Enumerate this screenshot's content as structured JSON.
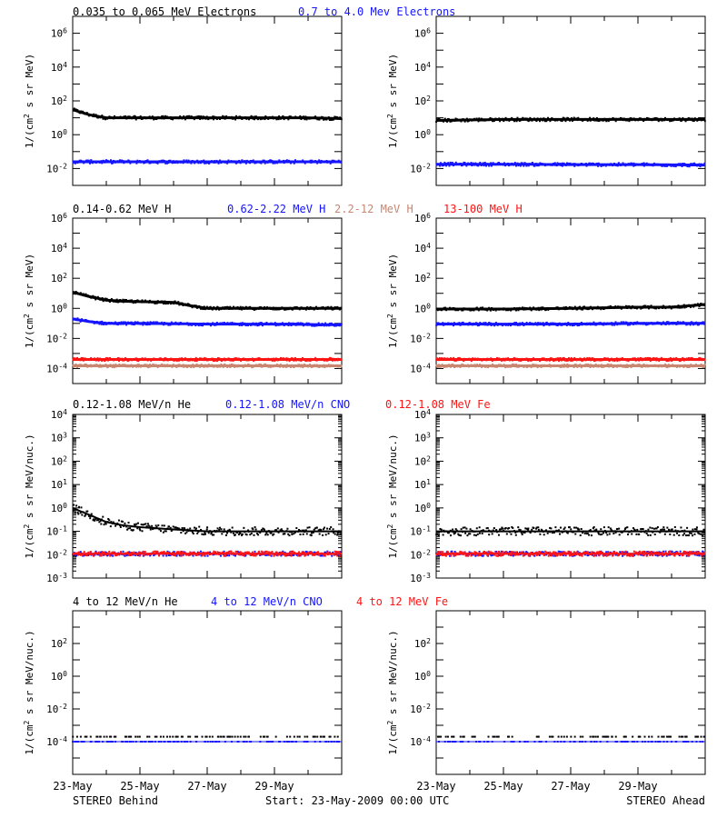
{
  "colors": {
    "black": "#000000",
    "blue": "#1414ff",
    "red": "#ff1414",
    "brown": "#c98670"
  },
  "panel_titles": [
    [
      {
        "text": "0.035 to 0.065 MeV Electrons",
        "color": "black"
      },
      {
        "text": "0.7 to 4.0 Mev Electrons",
        "color": "blue"
      }
    ],
    [
      {
        "text": "0.14-0.62 MeV H",
        "color": "black"
      },
      {
        "text": "0.62-2.22 MeV H",
        "color": "blue"
      },
      {
        "text": "2.2-12 MeV H",
        "color": "brown"
      },
      {
        "text": "13-100 MeV H",
        "color": "red"
      }
    ],
    [
      {
        "text": "0.12-1.08 MeV/n He",
        "color": "black"
      },
      {
        "text": "0.12-1.08 MeV/n CNO",
        "color": "blue"
      },
      {
        "text": "0.12-1.08 MeV Fe",
        "color": "red"
      }
    ],
    [
      {
        "text": "4 to 12 MeV/n He",
        "color": "black"
      },
      {
        "text": "4 to 12 MeV/n CNO",
        "color": "blue"
      },
      {
        "text": "4 to 12 MeV Fe",
        "color": "red"
      }
    ]
  ],
  "ylabels": [
    {
      "base": "1/(cm",
      "sup": "2",
      "rest": " s sr MeV)"
    },
    {
      "base": "1/(cm",
      "sup": "2",
      "rest": " s sr MeV)"
    },
    {
      "base": "1/(cm",
      "sup": "2",
      "rest": " s sr MeV/nuc.)"
    },
    {
      "base": "1/(cm",
      "sup": "2",
      "rest": " s sr MeV/nuc.)"
    }
  ],
  "footer": {
    "left": "STEREO Behind",
    "center": "Start: 23-May-2009 00:00 UTC",
    "right": "STEREO Ahead"
  },
  "chart_data": {
    "type": "scatter",
    "x_ticks": [
      "23-May",
      "25-May",
      "27-May",
      "29-May"
    ],
    "x_range_days": [
      0,
      8
    ],
    "rows": [
      {
        "scale": "log",
        "ylim_exp": [
          -3,
          7
        ],
        "ytick_exps": [
          -2,
          0,
          2,
          4,
          6
        ],
        "panels": [
          {
            "name": "STEREO Behind",
            "series": [
              {
                "name": "0.035 to 0.065 MeV Electrons",
                "color": "black",
                "x": [
                  0,
                  0.5,
                  1,
                  1.5,
                  2,
                  3,
                  4,
                  5,
                  6,
                  7,
                  8
                ],
                "y": [
                  30,
                  15,
                  10,
                  10,
                  10,
                  10,
                  10,
                  10,
                  10,
                  10,
                  9
                ]
              },
              {
                "name": "0.7 to 4.0 Mev Electrons",
                "color": "blue",
                "x": [
                  0,
                  2,
                  4,
                  6,
                  8
                ],
                "y": [
                  0.025,
                  0.025,
                  0.025,
                  0.025,
                  0.025
                ]
              }
            ]
          },
          {
            "name": "STEREO Ahead",
            "series": [
              {
                "name": "0.035 to 0.065 MeV Electrons",
                "color": "black",
                "x": [
                  0,
                  2,
                  4,
                  6,
                  8
                ],
                "y": [
                  7,
                  8,
                  8,
                  8,
                  8
                ]
              },
              {
                "name": "0.7 to 4.0 Mev Electrons",
                "color": "blue",
                "x": [
                  0,
                  2,
                  4,
                  6,
                  8
                ],
                "y": [
                  0.018,
                  0.018,
                  0.017,
                  0.017,
                  0.016
                ]
              }
            ]
          }
        ]
      },
      {
        "scale": "log",
        "ylim_exp": [
          -5,
          6
        ],
        "ytick_exps": [
          -4,
          -2,
          0,
          2,
          4,
          6
        ],
        "panels": [
          {
            "name": "STEREO Behind",
            "series": [
              {
                "name": "0.14-0.62 MeV H",
                "color": "black",
                "x": [
                  0,
                  0.5,
                  1,
                  1.5,
                  2,
                  3,
                  3.5,
                  4,
                  5,
                  6,
                  7,
                  8
                ],
                "y": [
                  12,
                  6,
                  3.5,
                  3,
                  2.8,
                  2.5,
                  1.5,
                  1.0,
                  1.0,
                  1.0,
                  1.0,
                  1.0
                ]
              },
              {
                "name": "0.62-2.22 MeV H",
                "color": "blue",
                "x": [
                  0,
                  0.5,
                  1,
                  2,
                  4,
                  6,
                  8
                ],
                "y": [
                  0.2,
                  0.13,
                  0.1,
                  0.1,
                  0.09,
                  0.09,
                  0.08
                ]
              },
              {
                "name": "2.2-12 MeV H",
                "color": "brown",
                "x": [
                  0,
                  2,
                  4,
                  6,
                  8
                ],
                "y": [
                  0.00015,
                  0.00015,
                  0.00015,
                  0.00015,
                  0.00015
                ]
              },
              {
                "name": "13-100 MeV H",
                "color": "red",
                "x": [
                  0,
                  2,
                  4,
                  6,
                  8
                ],
                "y": [
                  0.0004,
                  0.0004,
                  0.0004,
                  0.0004,
                  0.0004
                ]
              }
            ]
          },
          {
            "name": "STEREO Ahead",
            "series": [
              {
                "name": "0.14-0.62 MeV H",
                "color": "black",
                "x": [
                  0,
                  2,
                  4,
                  6,
                  7,
                  8
                ],
                "y": [
                  0.9,
                  0.9,
                  1.0,
                  1.2,
                  1.2,
                  1.8
                ]
              },
              {
                "name": "0.62-2.22 MeV H",
                "color": "blue",
                "x": [
                  0,
                  2,
                  4,
                  6,
                  8
                ],
                "y": [
                  0.09,
                  0.09,
                  0.09,
                  0.1,
                  0.1
                ]
              },
              {
                "name": "2.2-12 MeV H",
                "color": "brown",
                "x": [
                  0,
                  2,
                  4,
                  6,
                  8
                ],
                "y": [
                  0.00015,
                  0.00015,
                  0.00015,
                  0.00015,
                  0.00015
                ]
              },
              {
                "name": "13-100 MeV H",
                "color": "red",
                "x": [
                  0,
                  2,
                  4,
                  6,
                  8
                ],
                "y": [
                  0.0004,
                  0.0004,
                  0.0004,
                  0.0004,
                  0.0004
                ]
              }
            ]
          }
        ]
      },
      {
        "scale": "log",
        "ylim_exp": [
          -3,
          4
        ],
        "ytick_exps": [
          -3,
          -2,
          -1,
          0,
          1,
          2,
          3,
          4
        ],
        "panels": [
          {
            "name": "STEREO Behind",
            "series": [
              {
                "name": "0.12-1.08 MeV/n He",
                "color": "black",
                "x": [
                  0,
                  0.5,
                  1,
                  1.5,
                  2,
                  3,
                  4,
                  5,
                  6,
                  7,
                  8
                ],
                "y": [
                  1.0,
                  0.5,
                  0.25,
                  0.18,
                  0.15,
                  0.12,
                  0.1,
                  0.1,
                  0.1,
                  0.1,
                  0.1
                ]
              },
              {
                "name": "0.12-1.08 MeV/n CNO",
                "color": "blue",
                "x": [
                  0,
                  2,
                  4,
                  6,
                  8
                ],
                "y": [
                  0.011,
                  0.011,
                  0.011,
                  0.011,
                  0.011
                ]
              },
              {
                "name": "0.12-1.08 MeV Fe",
                "color": "red",
                "x": [
                  0,
                  2,
                  4,
                  6,
                  8
                ],
                "y": [
                  0.011,
                  0.011,
                  0.011,
                  0.011,
                  0.011
                ]
              }
            ]
          },
          {
            "name": "STEREO Ahead",
            "series": [
              {
                "name": "0.12-1.08 MeV/n He",
                "color": "black",
                "x": [
                  0,
                  2,
                  4,
                  6,
                  8
                ],
                "y": [
                  0.1,
                  0.1,
                  0.1,
                  0.1,
                  0.1
                ]
              },
              {
                "name": "0.12-1.08 MeV/n CNO",
                "color": "blue",
                "x": [
                  0,
                  2,
                  4,
                  6,
                  8
                ],
                "y": [
                  0.011,
                  0.011,
                  0.011,
                  0.011,
                  0.011
                ]
              },
              {
                "name": "0.12-1.08 MeV Fe",
                "color": "red",
                "x": [
                  0,
                  2,
                  4,
                  6,
                  8
                ],
                "y": [
                  0.011,
                  0.011,
                  0.011,
                  0.011,
                  0.011
                ]
              }
            ]
          }
        ]
      },
      {
        "scale": "log",
        "ylim_exp": [
          -6,
          4
        ],
        "ytick_exps": [
          -4,
          -2,
          0,
          2
        ],
        "panels": [
          {
            "name": "STEREO Behind",
            "series": [
              {
                "name": "4 to 12 MeV/n He",
                "color": "black",
                "x": [
                  0,
                  2,
                  4,
                  6,
                  8
                ],
                "y": [
                  0.0002,
                  0.0002,
                  0.0002,
                  0.0002,
                  0.0002
                ]
              },
              {
                "name": "4 to 12 MeV/n CNO",
                "color": "blue",
                "x": [
                  0,
                  2,
                  4,
                  6,
                  8
                ],
                "y": [
                  0.0001,
                  0.0001,
                  0.0001,
                  0.0001,
                  0.0001
                ]
              }
            ]
          },
          {
            "name": "STEREO Ahead",
            "series": [
              {
                "name": "4 to 12 MeV/n He",
                "color": "black",
                "x": [
                  0,
                  2,
                  4,
                  6,
                  8
                ],
                "y": [
                  0.0002,
                  0.0002,
                  0.0002,
                  0.0002,
                  0.0002
                ]
              },
              {
                "name": "4 to 12 MeV/n CNO",
                "color": "blue",
                "x": [
                  0,
                  2,
                  4,
                  6,
                  8
                ],
                "y": [
                  0.0001,
                  0.0001,
                  0.0001,
                  0.0001,
                  0.0001
                ]
              }
            ]
          }
        ]
      }
    ]
  }
}
